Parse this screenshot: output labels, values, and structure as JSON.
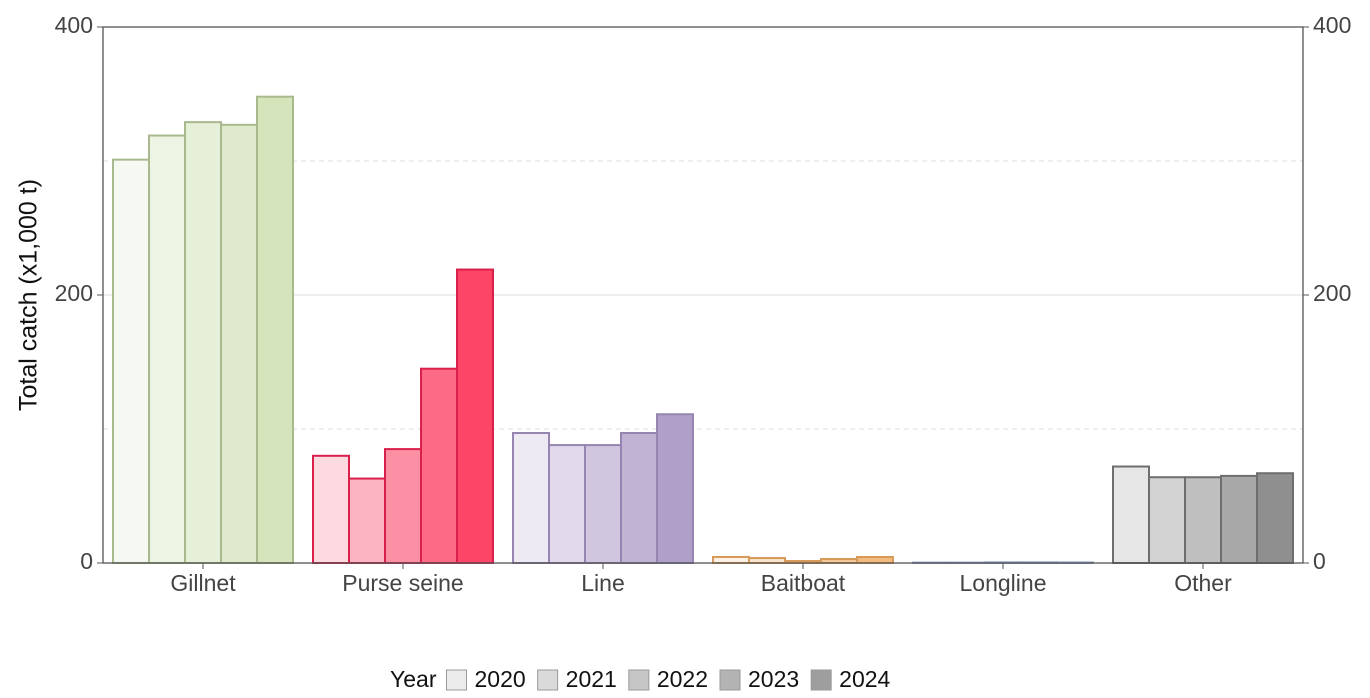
{
  "chart_data": {
    "type": "bar",
    "ylabel": "Total catch (x1,000 t)",
    "categories": [
      "Gillnet",
      "Purse seine",
      "Line",
      "Baitboat",
      "Longline",
      "Other"
    ],
    "edge_colors": [
      "#a8b98e",
      "#d8204a",
      "#9585b0",
      "#d89a58",
      "#8aa0c0",
      "#6e6e6e"
    ],
    "legend_title": "Year",
    "series": [
      {
        "name": "2020",
        "color": "#ececec",
        "colors": [
          "#f6f9f1",
          "#fdd9e0",
          "#eeeaf3",
          "#fdf2e6",
          "#eef2f8",
          "#e6e6e6"
        ],
        "values": [
          301,
          80,
          97,
          4.5,
          0.3,
          72
        ]
      },
      {
        "name": "2021",
        "color": "#dadada",
        "colors": [
          "#eef4e4",
          "#fcb4c2",
          "#e0daea",
          "#fae4cc",
          "#dce4f0",
          "#d2d2d2"
        ],
        "values": [
          319,
          63,
          88,
          3.7,
          0.3,
          64
        ]
      },
      {
        "name": "2022",
        "color": "#c6c6c6",
        "colors": [
          "#e6efd8",
          "#fb8fa3",
          "#d0c6df",
          "#f7d6b2",
          "#cad6e8",
          "#bfbfbf"
        ],
        "values": [
          329,
          85,
          88,
          1.5,
          0.5,
          64
        ]
      },
      {
        "name": "2023",
        "color": "#b3b3b3",
        "colors": [
          "#dfe9cc",
          "#fc6a85",
          "#c0b3d4",
          "#f4c898",
          "#b8c8e0",
          "#a8a8a8"
        ],
        "values": [
          327,
          145,
          97,
          3,
          0.5,
          65
        ]
      },
      {
        "name": "2024",
        "color": "#9e9e9e",
        "colors": [
          "#d6e4bc",
          "#fd4568",
          "#b0a0c8",
          "#f1ba7e",
          "#a6bad8",
          "#8f8f8f"
        ],
        "values": [
          348,
          219,
          111,
          4.5,
          0.4,
          67
        ]
      }
    ],
    "ylim": [
      0,
      400
    ],
    "yticks": [
      0,
      200,
      400
    ],
    "y2lim": [
      0,
      400
    ],
    "y2ticks": [
      0,
      200,
      400
    ],
    "minor_grid": [
      100,
      300
    ],
    "grid": true
  }
}
